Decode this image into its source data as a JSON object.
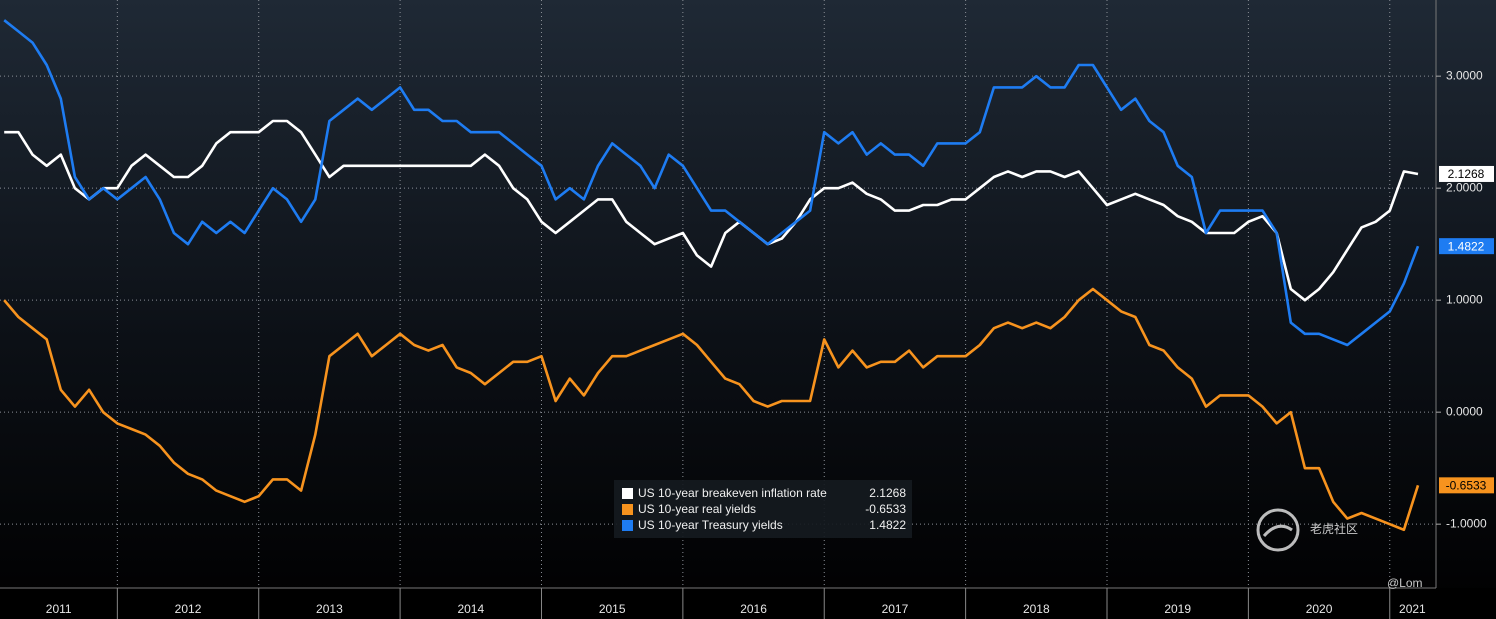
{
  "chart_data": {
    "type": "line",
    "x": [
      2011.2,
      2011.3,
      2011.4,
      2011.5,
      2011.6,
      2011.7,
      2011.8,
      2011.9,
      2012.0,
      2012.1,
      2012.2,
      2012.3,
      2012.4,
      2012.5,
      2012.6,
      2012.7,
      2012.8,
      2012.9,
      2013.0,
      2013.1,
      2013.2,
      2013.3,
      2013.4,
      2013.5,
      2013.6,
      2013.7,
      2013.8,
      2013.9,
      2014.0,
      2014.1,
      2014.2,
      2014.3,
      2014.4,
      2014.5,
      2014.6,
      2014.7,
      2014.8,
      2014.9,
      2015.0,
      2015.1,
      2015.2,
      2015.3,
      2015.4,
      2015.5,
      2015.6,
      2015.7,
      2015.8,
      2015.9,
      2016.0,
      2016.1,
      2016.2,
      2016.3,
      2016.4,
      2016.5,
      2016.6,
      2016.7,
      2016.8,
      2016.9,
      2017.0,
      2017.1,
      2017.2,
      2017.3,
      2017.4,
      2017.5,
      2017.6,
      2017.7,
      2017.8,
      2017.9,
      2018.0,
      2018.1,
      2018.2,
      2018.3,
      2018.4,
      2018.5,
      2018.6,
      2018.7,
      2018.8,
      2018.9,
      2019.0,
      2019.1,
      2019.2,
      2019.3,
      2019.4,
      2019.5,
      2019.6,
      2019.7,
      2019.8,
      2019.9,
      2020.0,
      2020.1,
      2020.2,
      2020.3,
      2020.4,
      2020.5,
      2020.6,
      2020.7,
      2020.8,
      2020.9,
      2021.0,
      2021.1,
      2021.2
    ],
    "series": [
      {
        "name": "US 10-year breakeven inflation rate",
        "color": "#ffffff",
        "values": [
          2.5,
          2.5,
          2.3,
          2.2,
          2.3,
          2.0,
          1.9,
          2.0,
          2.0,
          2.2,
          2.3,
          2.2,
          2.1,
          2.1,
          2.2,
          2.4,
          2.5,
          2.5,
          2.5,
          2.6,
          2.6,
          2.5,
          2.3,
          2.1,
          2.2,
          2.2,
          2.2,
          2.2,
          2.2,
          2.2,
          2.2,
          2.2,
          2.2,
          2.2,
          2.3,
          2.2,
          2.0,
          1.9,
          1.7,
          1.6,
          1.7,
          1.8,
          1.9,
          1.9,
          1.7,
          1.6,
          1.5,
          1.55,
          1.6,
          1.4,
          1.3,
          1.6,
          1.7,
          1.6,
          1.5,
          1.55,
          1.7,
          1.9,
          2.0,
          2.0,
          2.05,
          1.95,
          1.9,
          1.8,
          1.8,
          1.85,
          1.85,
          1.9,
          1.9,
          2.0,
          2.1,
          2.15,
          2.1,
          2.15,
          2.15,
          2.1,
          2.15,
          2.0,
          1.85,
          1.9,
          1.95,
          1.9,
          1.85,
          1.75,
          1.7,
          1.6,
          1.6,
          1.6,
          1.7,
          1.75,
          1.6,
          1.1,
          1.0,
          1.1,
          1.25,
          1.45,
          1.65,
          1.7,
          1.8,
          2.15,
          2.1268
        ]
      },
      {
        "name": "US 10-year real yields",
        "color": "#f7931e",
        "values": [
          1.0,
          0.85,
          0.75,
          0.65,
          0.2,
          0.05,
          0.2,
          0.0,
          -0.1,
          -0.15,
          -0.2,
          -0.3,
          -0.45,
          -0.55,
          -0.6,
          -0.7,
          -0.75,
          -0.8,
          -0.75,
          -0.6,
          -0.6,
          -0.7,
          -0.2,
          0.5,
          0.6,
          0.7,
          0.5,
          0.6,
          0.7,
          0.6,
          0.55,
          0.6,
          0.4,
          0.35,
          0.25,
          0.35,
          0.45,
          0.45,
          0.5,
          0.1,
          0.3,
          0.15,
          0.35,
          0.5,
          0.5,
          0.55,
          0.6,
          0.65,
          0.7,
          0.6,
          0.45,
          0.3,
          0.25,
          0.1,
          0.05,
          0.1,
          0.1,
          0.1,
          0.65,
          0.4,
          0.55,
          0.4,
          0.45,
          0.45,
          0.55,
          0.4,
          0.5,
          0.5,
          0.5,
          0.6,
          0.75,
          0.8,
          0.75,
          0.8,
          0.75,
          0.85,
          1.0,
          1.1,
          1.0,
          0.9,
          0.85,
          0.6,
          0.55,
          0.4,
          0.3,
          0.05,
          0.15,
          0.15,
          0.15,
          0.05,
          -0.1,
          0.0,
          -0.5,
          -0.5,
          -0.8,
          -0.95,
          -0.9,
          -0.95,
          -1.0,
          -1.05,
          -0.6533
        ]
      },
      {
        "name": "US 10-year Treasury yields",
        "color": "#1e7cf2",
        "values": [
          3.5,
          3.4,
          3.3,
          3.1,
          2.8,
          2.1,
          1.9,
          2.0,
          1.9,
          2.0,
          2.1,
          1.9,
          1.6,
          1.5,
          1.7,
          1.6,
          1.7,
          1.6,
          1.8,
          2.0,
          1.9,
          1.7,
          1.9,
          2.6,
          2.7,
          2.8,
          2.7,
          2.8,
          2.9,
          2.7,
          2.7,
          2.6,
          2.6,
          2.5,
          2.5,
          2.5,
          2.4,
          2.3,
          2.2,
          1.9,
          2.0,
          1.9,
          2.2,
          2.4,
          2.3,
          2.2,
          2.0,
          2.3,
          2.2,
          2.0,
          1.8,
          1.8,
          1.7,
          1.6,
          1.5,
          1.6,
          1.7,
          1.8,
          2.5,
          2.4,
          2.5,
          2.3,
          2.4,
          2.3,
          2.3,
          2.2,
          2.4,
          2.4,
          2.4,
          2.5,
          2.9,
          2.9,
          2.9,
          3.0,
          2.9,
          2.9,
          3.1,
          3.1,
          2.9,
          2.7,
          2.8,
          2.6,
          2.5,
          2.2,
          2.1,
          1.6,
          1.8,
          1.8,
          1.8,
          1.8,
          1.6,
          0.8,
          0.7,
          0.7,
          0.65,
          0.6,
          0.7,
          0.8,
          0.9,
          1.15,
          1.4822
        ]
      }
    ],
    "xlim": [
      2011.17,
      2021.32
    ],
    "xticks": [
      2011,
      2012,
      2013,
      2014,
      2015,
      2016,
      2017,
      2018,
      2019,
      2020,
      2021
    ],
    "ylim": [
      -1.57,
      3.68
    ],
    "yticks": [
      {
        "value": -1,
        "label": "-1.0000"
      },
      {
        "value": 0,
        "label": "0.0000"
      },
      {
        "value": 1,
        "label": "1.0000"
      },
      {
        "value": 2,
        "label": "2.0000"
      },
      {
        "value": 3,
        "label": "3.0000"
      }
    ],
    "grid": true,
    "legend": "bottom-center",
    "annotations": [
      "老虎社区",
      "@Lom"
    ]
  }
}
